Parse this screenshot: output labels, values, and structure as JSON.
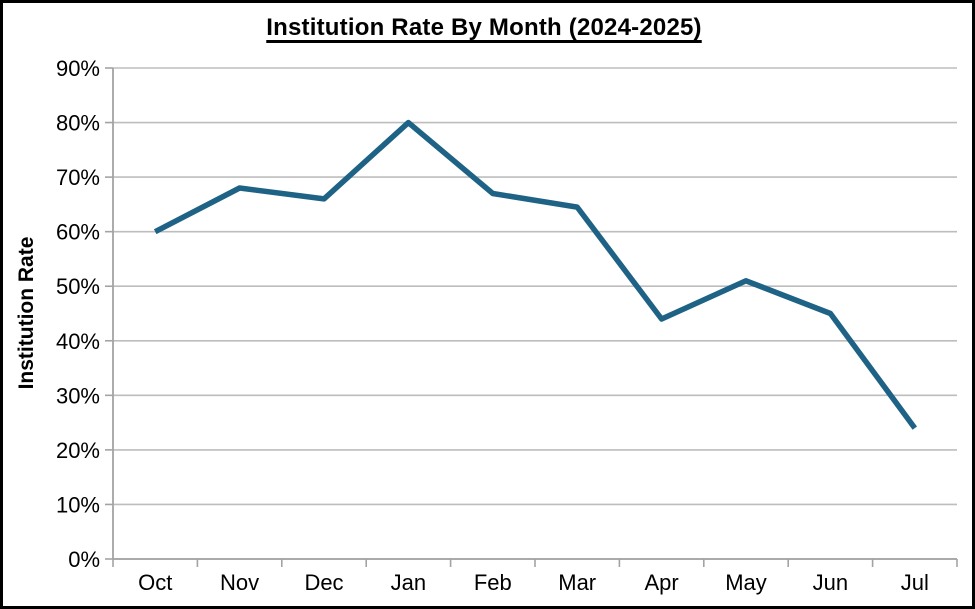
{
  "window": {
    "background_color": "#FFFFFF",
    "border_color": "#000000"
  },
  "chart_data": {
    "type": "line",
    "title": "Institution Rate By Month (2024-2025)",
    "xlabel": "",
    "ylabel": "Institution Rate",
    "categories": [
      "Oct",
      "Nov",
      "Dec",
      "Jan",
      "Feb",
      "Mar",
      "Apr",
      "May",
      "Jun",
      "Jul"
    ],
    "series": [
      {
        "name": "Institution Rate",
        "values": [
          60,
          68,
          66,
          80,
          67,
          64.5,
          44,
          51,
          45,
          24
        ]
      }
    ],
    "ylim": [
      0,
      90
    ],
    "ytick_interval": 10,
    "ytick_labels": [
      "0%",
      "10%",
      "20%",
      "30%",
      "40%",
      "50%",
      "60%",
      "70%",
      "80%",
      "90%"
    ],
    "grid": true,
    "legend": "none",
    "styles": {
      "line_color": "#1E6286",
      "line_width": 5.5,
      "gridline_color": "#BDBDBD",
      "axis_color": "#A3A3A3",
      "text_color": "#000000",
      "tick_font_size": 22
    }
  }
}
